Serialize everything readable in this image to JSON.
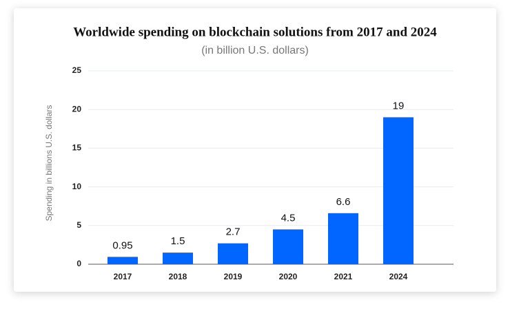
{
  "chart_data": {
    "type": "bar",
    "title": "Worldwide spending on blockchain solutions from 2017 and 2024",
    "subtitle": "(in billion U.S. dollars)",
    "y_label": "Spending in billions U.S. dollars",
    "categories": [
      "2017",
      "2018",
      "2019",
      "2020",
      "2021",
      "2024"
    ],
    "values": [
      0.95,
      1.5,
      2.7,
      4.5,
      6.6,
      19
    ],
    "color": "#0066ff",
    "ylim": [
      0,
      25
    ],
    "yticks": [
      0,
      5,
      10,
      15,
      20,
      25
    ],
    "grid": true
  }
}
